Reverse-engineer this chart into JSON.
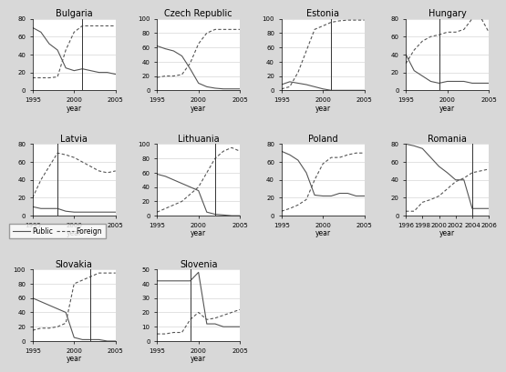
{
  "countries": [
    "Bulgaria",
    "Czech Republic",
    "Estonia",
    "Hungary",
    "Latvia",
    "Lithuania",
    "Poland",
    "Romania",
    "Slovakia",
    "Slovenia"
  ],
  "vline": {
    "Bulgaria": 2001,
    "Czech Republic": null,
    "Estonia": 2001,
    "Hungary": 1999,
    "Latvia": 1998,
    "Lithuania": 2002,
    "Poland": null,
    "Romania": 2004,
    "Slovakia": 2002,
    "Slovenia": 1999
  },
  "data": {
    "Bulgaria": {
      "years": [
        1995,
        1996,
        1997,
        1998,
        1999,
        2000,
        2001,
        2002,
        2003,
        2004,
        2005
      ],
      "public": [
        70,
        65,
        52,
        45,
        25,
        22,
        24,
        22,
        20,
        20,
        18
      ],
      "foreign": [
        14,
        14,
        14,
        15,
        45,
        65,
        72,
        72,
        72,
        72,
        72
      ],
      "ylim": [
        0,
        80
      ],
      "yticks": [
        0,
        20,
        40,
        60,
        80
      ],
      "xlim": [
        1995,
        2005
      ],
      "xticks": [
        1995,
        2000,
        2005
      ]
    },
    "Czech Republic": {
      "years": [
        1995,
        1996,
        1997,
        1998,
        1999,
        2000,
        2001,
        2002,
        2003,
        2004,
        2005
      ],
      "public": [
        62,
        58,
        55,
        48,
        30,
        10,
        5,
        3,
        2,
        2,
        2
      ],
      "foreign": [
        18,
        20,
        20,
        22,
        38,
        65,
        80,
        85,
        85,
        85,
        85
      ],
      "ylim": [
        0,
        100
      ],
      "yticks": [
        0,
        20,
        40,
        60,
        80,
        100
      ],
      "xlim": [
        1995,
        2005
      ],
      "xticks": [
        1995,
        2000,
        2005
      ]
    },
    "Estonia": {
      "years": [
        1995,
        1996,
        1997,
        1998,
        1999,
        2000,
        2001,
        2002,
        2003,
        2004,
        2005
      ],
      "public": [
        8,
        12,
        10,
        8,
        5,
        2,
        0,
        0,
        0,
        0,
        0
      ],
      "foreign": [
        2,
        5,
        25,
        55,
        85,
        90,
        95,
        97,
        98,
        98,
        98
      ],
      "ylim": [
        0,
        100
      ],
      "yticks": [
        0,
        20,
        40,
        60,
        80,
        100
      ],
      "xlim": [
        1995,
        2005
      ],
      "xticks": [
        1995,
        2000,
        2005
      ]
    },
    "Hungary": {
      "years": [
        1995,
        1996,
        1997,
        1998,
        1999,
        2000,
        2001,
        2002,
        2003,
        2004,
        2005
      ],
      "public": [
        40,
        22,
        16,
        10,
        8,
        10,
        10,
        10,
        8,
        8,
        8
      ],
      "foreign": [
        30,
        45,
        55,
        60,
        62,
        65,
        65,
        68,
        80,
        82,
        65
      ],
      "ylim": [
        0,
        80
      ],
      "yticks": [
        0,
        20,
        40,
        60,
        80
      ],
      "xlim": [
        1995,
        2005
      ],
      "xticks": [
        1995,
        2000,
        2005
      ]
    },
    "Latvia": {
      "years": [
        1995,
        1996,
        1997,
        1998,
        1999,
        2000,
        2001,
        2002,
        2003,
        2004,
        2005
      ],
      "public": [
        10,
        8,
        8,
        8,
        5,
        4,
        4,
        4,
        4,
        4,
        4
      ],
      "foreign": [
        20,
        40,
        55,
        70,
        68,
        65,
        60,
        55,
        50,
        48,
        50
      ],
      "ylim": [
        0,
        80
      ],
      "yticks": [
        0,
        20,
        40,
        60,
        80
      ],
      "xlim": [
        1995,
        2005
      ],
      "xticks": [
        1995,
        2000,
        2005
      ]
    },
    "Lithuania": {
      "years": [
        1995,
        1996,
        1997,
        1998,
        1999,
        2000,
        2001,
        2002,
        2003,
        2004,
        2005
      ],
      "public": [
        58,
        55,
        50,
        45,
        40,
        35,
        5,
        2,
        1,
        0,
        0
      ],
      "foreign": [
        5,
        10,
        15,
        20,
        30,
        40,
        60,
        80,
        90,
        95,
        90
      ],
      "ylim": [
        0,
        100
      ],
      "yticks": [
        0,
        20,
        40,
        60,
        80,
        100
      ],
      "xlim": [
        1995,
        2005
      ],
      "xticks": [
        1995,
        2000,
        2005
      ]
    },
    "Poland": {
      "years": [
        1995,
        1996,
        1997,
        1998,
        1999,
        2000,
        2001,
        2002,
        2003,
        2004,
        2005
      ],
      "public": [
        72,
        68,
        62,
        48,
        23,
        22,
        22,
        25,
        25,
        22,
        22
      ],
      "foreign": [
        5,
        8,
        12,
        18,
        40,
        58,
        65,
        65,
        68,
        70,
        70
      ],
      "ylim": [
        0,
        80
      ],
      "yticks": [
        0,
        20,
        40,
        60,
        80
      ],
      "xlim": [
        1995,
        2005
      ],
      "xticks": [
        1995,
        2000,
        2005
      ]
    },
    "Romania": {
      "years": [
        1996,
        1997,
        1998,
        1999,
        2000,
        2001,
        2002,
        2003,
        2004,
        2005,
        2006
      ],
      "public": [
        80,
        78,
        75,
        65,
        55,
        48,
        40,
        40,
        8,
        8,
        8
      ],
      "foreign": [
        5,
        5,
        15,
        18,
        22,
        30,
        38,
        42,
        48,
        50,
        52
      ],
      "ylim": [
        0,
        80
      ],
      "yticks": [
        0,
        20,
        40,
        60,
        80
      ],
      "xlim": [
        1996,
        2006
      ],
      "xticks": [
        1996,
        1998,
        2000,
        2002,
        2004,
        2006
      ]
    },
    "Slovakia": {
      "years": [
        1995,
        1996,
        1997,
        1998,
        1999,
        2000,
        2001,
        2002,
        2003,
        2004,
        2005
      ],
      "public": [
        60,
        55,
        50,
        45,
        40,
        5,
        2,
        2,
        2,
        0,
        0
      ],
      "foreign": [
        15,
        18,
        18,
        20,
        25,
        80,
        85,
        90,
        95,
        95,
        95
      ],
      "ylim": [
        0,
        100
      ],
      "yticks": [
        0,
        20,
        40,
        60,
        80,
        100
      ],
      "xlim": [
        1995,
        2005
      ],
      "xticks": [
        1995,
        2000,
        2005
      ]
    },
    "Slovenia": {
      "years": [
        1995,
        1996,
        1997,
        1998,
        1999,
        2000,
        2001,
        2002,
        2003,
        2004,
        2005
      ],
      "public": [
        42,
        42,
        42,
        42,
        42,
        48,
        12,
        12,
        10,
        10,
        10
      ],
      "foreign": [
        5,
        5,
        6,
        6,
        15,
        20,
        15,
        16,
        18,
        20,
        22
      ],
      "ylim": [
        0,
        50
      ],
      "yticks": [
        0,
        10,
        20,
        30,
        40,
        50
      ],
      "xlim": [
        1995,
        2005
      ],
      "xticks": [
        1995,
        2000,
        2005
      ]
    }
  },
  "line_color_public": "#555555",
  "line_color_foreign": "#555555",
  "bg_color": "#d8d8d8",
  "plot_bg": "#ffffff",
  "fontsize_title": 7,
  "fontsize_axis": 5.5,
  "fontsize_tick": 5
}
